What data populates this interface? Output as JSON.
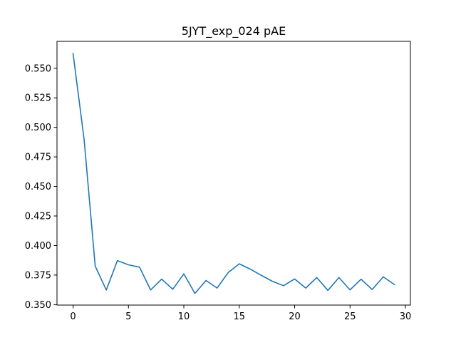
{
  "chart_data": {
    "type": "line",
    "title": "5JYT_exp_024 pAE",
    "xlabel": "",
    "ylabel": "",
    "xlim": [
      -1.45,
      30.45
    ],
    "ylim": [
      0.3496,
      0.5728
    ],
    "grid": false,
    "legend": "none",
    "x_ticks": [
      0,
      5,
      10,
      15,
      20,
      25,
      30
    ],
    "y_ticks": [
      0.35,
      0.375,
      0.4,
      0.425,
      0.45,
      0.475,
      0.5,
      0.525,
      0.55
    ],
    "x_tick_labels": [
      "0",
      "5",
      "10",
      "15",
      "20",
      "25",
      "30"
    ],
    "y_tick_labels": [
      "0.350",
      "0.375",
      "0.400",
      "0.425",
      "0.450",
      "0.475",
      "0.500",
      "0.525",
      "0.550"
    ],
    "series": [
      {
        "color": "#1f77b4",
        "x": [
          0,
          1,
          2,
          3,
          4,
          5,
          6,
          7,
          8,
          9,
          10,
          11,
          12,
          13,
          14,
          15,
          16,
          17,
          18,
          19,
          20,
          21,
          22,
          23,
          24,
          25,
          26,
          27,
          28,
          29
        ],
        "y": [
          0.5625,
          0.4896,
          0.3825,
          0.3624,
          0.3872,
          0.3837,
          0.3817,
          0.3624,
          0.3716,
          0.363,
          0.376,
          0.3595,
          0.3704,
          0.364,
          0.3771,
          0.3845,
          0.38,
          0.3747,
          0.3697,
          0.366,
          0.3717,
          0.364,
          0.3729,
          0.362,
          0.3729,
          0.3625,
          0.3715,
          0.3628,
          0.3735,
          0.367
        ]
      }
    ]
  }
}
